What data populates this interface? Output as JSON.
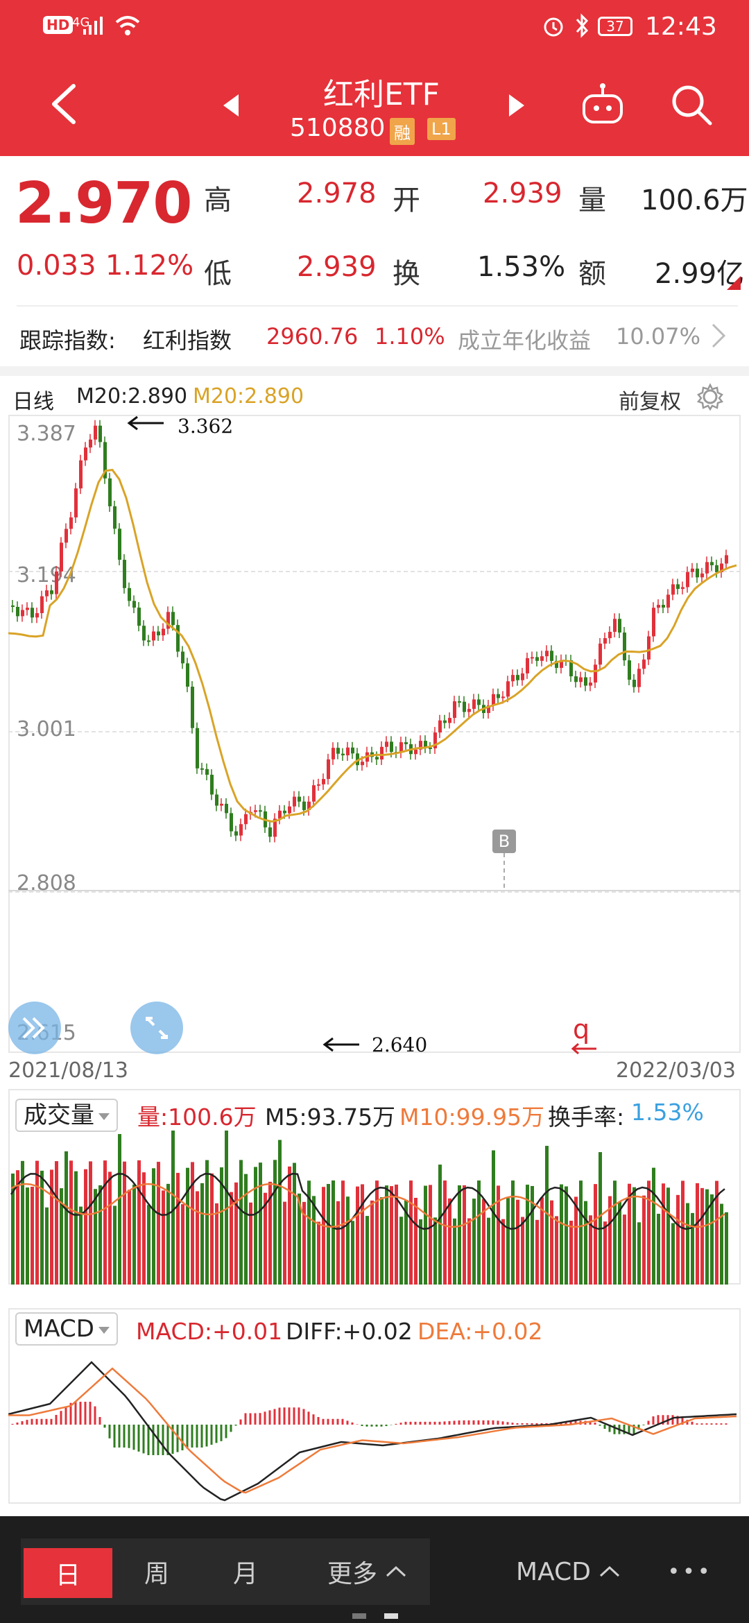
{
  "status": {
    "time": "12:43",
    "battery": "37",
    "network": "4G",
    "hd": "HD"
  },
  "header": {
    "title": "红利ETF",
    "code": "510880",
    "tag_rong": "融",
    "tag_l1": "L1"
  },
  "quote": {
    "price": "2.970",
    "change": "0.033",
    "change_pct": "1.12%",
    "high_label": "高",
    "high": "2.978",
    "open_label": "开",
    "open": "2.939",
    "vol_label": "量",
    "vol": "100.6万",
    "low_label": "低",
    "low": "2.939",
    "turnover_label": "换",
    "turnover": "1.53%",
    "amount_label": "额",
    "amount": "2.99亿"
  },
  "index_row": {
    "label": "跟踪指数:",
    "name": "红利指数",
    "value": "2960.76",
    "pct": "1.10%",
    "annual_label": "成立年化收益",
    "annual": "10.07%"
  },
  "kline": {
    "period": "日线",
    "ma_black": "M20:2.890",
    "ma_gold": "M20:2.890",
    "adjust": "前复权",
    "y_ticks": [
      "3.387",
      "3.194",
      "3.001",
      "2.808",
      "2.615"
    ],
    "high_mark": "3.362",
    "low_mark": "2.640",
    "date_start": "2021/08/13",
    "date_end": "2022/03/03",
    "b_mark": "B",
    "q_mark": "q"
  },
  "volume": {
    "selector": "成交量",
    "vol": "量:100.6万",
    "m5": "M5:93.75万",
    "m10": "M10:99.95万",
    "turn_label": "换手率:",
    "turn": "1.53%"
  },
  "macd": {
    "selector": "MACD",
    "macd": "MACD:+0.01",
    "diff": "DIFF:+0.02",
    "dea": "DEA:+0.02"
  },
  "bottom": {
    "tab_day": "日",
    "tab_week": "周",
    "tab_month": "月",
    "tab_more": "更多",
    "indicator": "MACD",
    "more_dots": "•••"
  },
  "colors": {
    "header": "#e6323a",
    "up": "#e0313b",
    "down": "#2f7d1f",
    "ma_gold": "#d9a326",
    "ma_orange": "#ee7a3a",
    "turnover_blue": "#3aa0e0"
  }
}
